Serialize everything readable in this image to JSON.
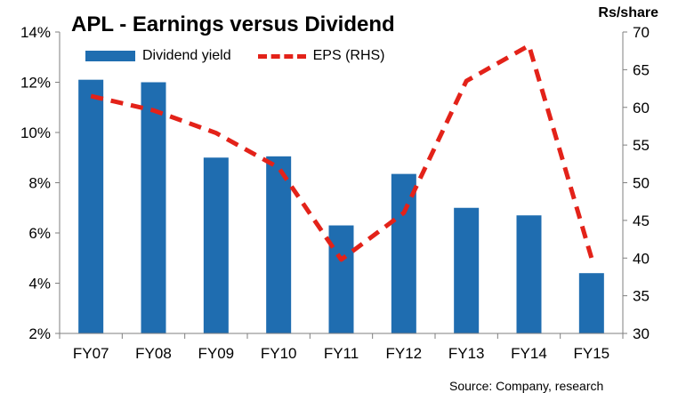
{
  "chart_data": {
    "type": "bar",
    "title": "APL - Earnings versus Dividend",
    "categories": [
      "FY07",
      "FY08",
      "FY09",
      "FY10",
      "FY11",
      "FY12",
      "FY13",
      "FY14",
      "FY15"
    ],
    "series": [
      {
        "name": "Dividend yield",
        "type": "bar",
        "axis": "left",
        "color": "#1f6db0",
        "values": [
          12.1,
          12.0,
          9.0,
          9.05,
          6.3,
          8.35,
          7.0,
          6.7,
          4.4
        ]
      },
      {
        "name": "EPS (RHS)",
        "type": "line",
        "style": "dashed",
        "axis": "right",
        "color": "#e32219",
        "values": [
          61.5,
          59.6,
          56.6,
          52.0,
          39.8,
          46.0,
          63.5,
          68.2,
          40.0
        ]
      }
    ],
    "y_left": {
      "range": [
        2,
        14
      ],
      "ticks": [
        "2%",
        "4%",
        "6%",
        "8%",
        "10%",
        "12%",
        "14%"
      ]
    },
    "y_right": {
      "label": "Rs/share",
      "range": [
        30,
        70
      ],
      "ticks": [
        "30",
        "35",
        "40",
        "45",
        "50",
        "55",
        "60",
        "65",
        "70"
      ]
    },
    "legend_position": "top-left",
    "grid": false,
    "source_fragment": "Source: Company, research"
  }
}
